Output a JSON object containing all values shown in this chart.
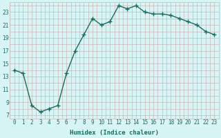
{
  "x": [
    0,
    1,
    2,
    3,
    4,
    5,
    6,
    7,
    8,
    9,
    10,
    11,
    12,
    13,
    14,
    15,
    16,
    17,
    18,
    19,
    20,
    21,
    22,
    23
  ],
  "y": [
    14.0,
    13.5,
    8.5,
    7.5,
    8.0,
    8.5,
    13.5,
    17.0,
    19.5,
    22.0,
    21.0,
    21.5,
    24.0,
    23.5,
    24.0,
    23.0,
    22.7,
    22.7,
    22.5,
    22.0,
    21.5,
    21.0,
    20.0,
    19.5
  ],
  "line_color": "#1a6b5e",
  "marker": "+",
  "marker_size": 4,
  "bg_color": "#d8f5f5",
  "grid_color": "#c8b8b8",
  "xlabel": "Humidex (Indice chaleur)",
  "xlim": [
    -0.5,
    23.5
  ],
  "ylim": [
    6.5,
    24.5
  ],
  "yticks": [
    7,
    9,
    11,
    13,
    15,
    17,
    19,
    21,
    23
  ],
  "xticks": [
    0,
    1,
    2,
    3,
    4,
    5,
    6,
    7,
    8,
    9,
    10,
    11,
    12,
    13,
    14,
    15,
    16,
    17,
    18,
    19,
    20,
    21,
    22,
    23
  ],
  "xlabel_fontsize": 6.5,
  "tick_fontsize": 5.5,
  "line_width": 1.0,
  "marker_color": "#1a6b5e"
}
